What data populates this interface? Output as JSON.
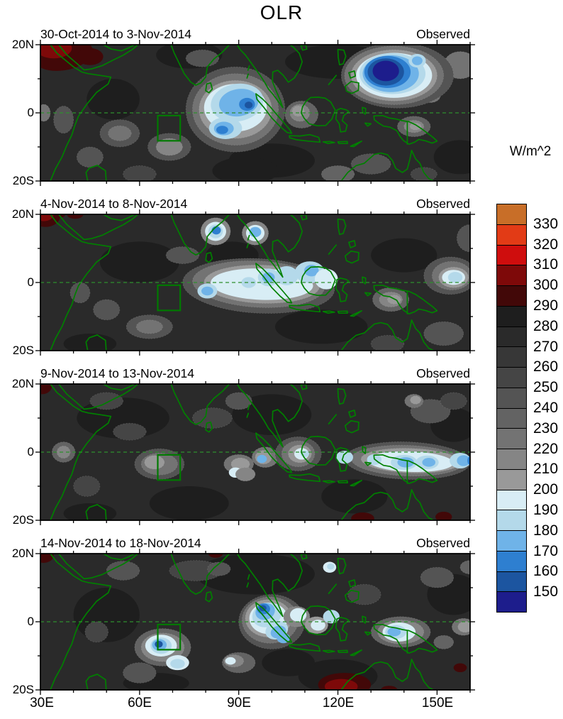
{
  "title": "OLR",
  "source_label": "Observed",
  "panels": [
    {
      "date_range": "30-Oct-2014 to 3-Nov-2014",
      "source": "Observed"
    },
    {
      "date_range": "4-Nov-2014 to 8-Nov-2014",
      "source": "Observed"
    },
    {
      "date_range": "9-Nov-2014 to 13-Nov-2014",
      "source": "Observed"
    },
    {
      "date_range": "14-Nov-2014 to 18-Nov-2014",
      "source": "Observed"
    }
  ],
  "axes": {
    "x_ticks": [
      "30E",
      "60E",
      "90E",
      "120E",
      "150E"
    ],
    "y_ticks": [
      "20N",
      "0",
      "20S"
    ],
    "lon_range": [
      30,
      160
    ],
    "lat_range": [
      -20,
      20
    ]
  },
  "colorbar": {
    "title": "W/m^2",
    "tick_labels": [
      "330",
      "320",
      "310",
      "300",
      "290",
      "280",
      "270",
      "260",
      "250",
      "240",
      "230",
      "220",
      "210",
      "200",
      "190",
      "180",
      "170",
      "160",
      "150"
    ],
    "values": [
      330,
      320,
      310,
      300,
      290,
      280,
      270,
      260,
      250,
      240,
      230,
      220,
      210,
      200,
      190,
      180,
      170,
      160,
      150
    ],
    "colors": [
      "#c86e28",
      "#e23b16",
      "#cf0d0d",
      "#7e0909",
      "#420808",
      "#1e1e1e",
      "#2a2a2a",
      "#373737",
      "#454545",
      "#545454",
      "#636363",
      "#737373",
      "#858585",
      "#999999",
      "#d8edf5",
      "#b4d9ea",
      "#6fb3e8",
      "#2e7fd0",
      "#1c55a0",
      "#1d1d8c"
    ]
  },
  "map_style": {
    "coastline_color": "#008000",
    "equator_line_color": "#2f8f2f",
    "index_box_color": "#007a00",
    "base_value": 272
  },
  "chart_data": {
    "type": "heatmap",
    "title": "OLR",
    "units": "W/m^2",
    "x_tick_labels": [
      "30E",
      "60E",
      "90E",
      "120E",
      "150E"
    ],
    "y_tick_labels": [
      "20N",
      "0",
      "20S"
    ],
    "lon_range_deg_east": [
      30,
      160
    ],
    "lat_range_deg_north": [
      -20,
      20
    ],
    "colorbar_levels_w_m2": [
      150,
      160,
      170,
      180,
      190,
      200,
      210,
      220,
      230,
      240,
      250,
      260,
      270,
      280,
      290,
      300,
      310,
      320,
      330
    ],
    "legend_position": "right",
    "annotations": {
      "equator_dashed_line": true,
      "index_region_box": {
        "lon": [
          65.5,
          72.3
        ],
        "lat": [
          -8.2,
          -0.8
        ]
      },
      "coastlines": "green outlines of Africa, Arabia, India, Indochina, Maritime Continent, New Guinea, N. Australia"
    },
    "panels": [
      {
        "date_range": "30-Oct-2014 to 3-Nov-2014",
        "source": "Observed",
        "notable_features": [
          {
            "feature": "deep convection minimum",
            "lon": 134.5,
            "lat": 12,
            "approx_olr": 145
          },
          {
            "feature": "convective minimum Bay of Bengal / eq. Indian Ocean",
            "lon": 92,
            "lat": 2,
            "approx_olr": 155
          },
          {
            "feature": "secondary blue lobe",
            "lon": 85.5,
            "lat": -5,
            "approx_olr": 165
          },
          {
            "feature": "light-blue spot",
            "lon": 144,
            "lat": 15,
            "approx_olr": 175
          },
          {
            "feature": "high OLR (clear) patch NE Africa/Arabia",
            "lon": 36,
            "lat": 18,
            "approx_olr": 305
          }
        ]
      },
      {
        "date_range": "4-Nov-2014 to 8-Nov-2014",
        "source": "Observed",
        "notable_features": [
          {
            "feature": "equatorial pale band 75E-115E",
            "lon": 96,
            "lat": -1,
            "approx_olr": 195
          },
          {
            "feature": "blue cores in band",
            "lon": 99,
            "lat": 1.5,
            "approx_olr": 175
          },
          {
            "feature": "blue spot",
            "lon": 83,
            "lat": 15,
            "approx_olr": 165
          },
          {
            "feature": "blue spot",
            "lon": 95,
            "lat": 14.5,
            "approx_olr": 175
          },
          {
            "feature": "pale blue patch west Pacific",
            "lon": 155,
            "lat": 1.5,
            "approx_olr": 185
          },
          {
            "feature": "high OLR patch NW corner",
            "lon": 31.5,
            "lat": 19.5,
            "approx_olr": 305
          }
        ]
      },
      {
        "date_range": "9-Nov-2014 to 13-Nov-2014",
        "source": "Observed",
        "notable_features": [
          {
            "feature": "pale band along ~2.5S from 120E-160E",
            "lon": 141,
            "lat": -2.5,
            "approx_olr": 195
          },
          {
            "feature": "blue cores near New Guinea",
            "lon": 140,
            "lat": -3,
            "approx_olr": 175
          },
          {
            "feature": "blue core far east",
            "lon": 157,
            "lat": -2.5,
            "approx_olr": 175
          },
          {
            "feature": "light patch near index box",
            "lon": 65,
            "lat": -3,
            "approx_olr": 205
          },
          {
            "feature": "high OLR patches S of Australia margin",
            "lon": 127.5,
            "lat": -19.5,
            "approx_olr": 295
          }
        ]
      },
      {
        "date_range": "14-Nov-2014 to 18-Nov-2014",
        "source": "Observed",
        "notable_features": [
          {
            "feature": "deep convection over N Sumatra",
            "lon": 97.3,
            "lat": 4,
            "approx_olr": 155
          },
          {
            "feature": "blue blob central Indian Ocean",
            "lon": 66,
            "lat": -7,
            "approx_olr": 155
          },
          {
            "feature": "light-blue patch New Guinea",
            "lon": 137,
            "lat": -3,
            "approx_olr": 175
          },
          {
            "feature": "high OLR region NW Australia",
            "lon": 122,
            "lat": -19,
            "approx_olr": 305
          }
        ]
      }
    ]
  }
}
